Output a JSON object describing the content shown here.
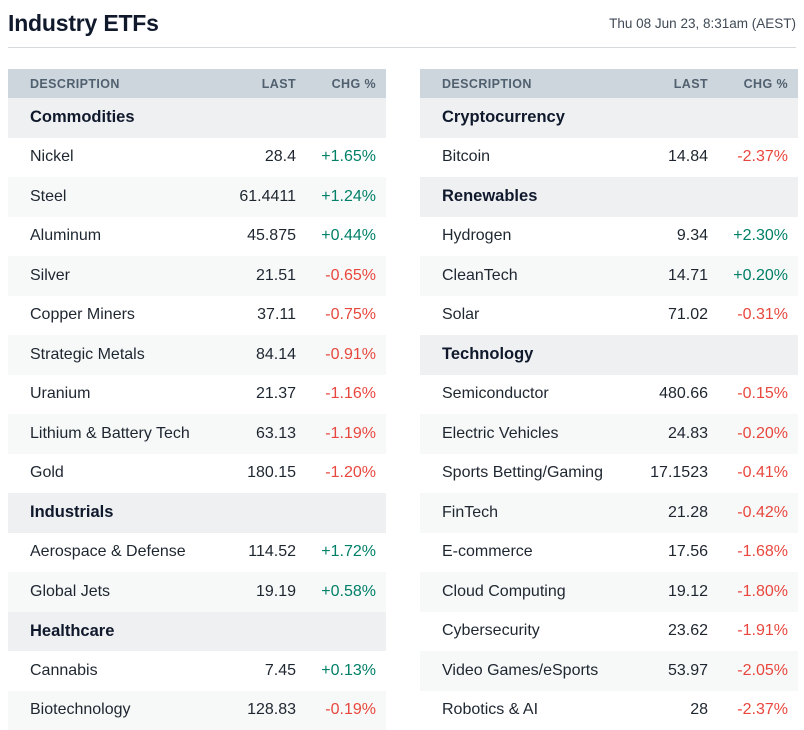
{
  "page": {
    "title": "Industry ETFs",
    "timestamp": "Thu 08 Jun 23, 8:31am (AEST)"
  },
  "colors": {
    "positive": "#008068",
    "negative": "#e8473d",
    "header_bg": "#cdd6dd",
    "header_fg": "#51606f",
    "section_bg": "#eef0f2",
    "stripe_bg": "#f7f8f8",
    "title_fg": "#10192c"
  },
  "columns": {
    "description": "DESCRIPTION",
    "last": "LAST",
    "chg": "CHG %"
  },
  "tables": [
    {
      "name": "left",
      "rows": [
        {
          "type": "section",
          "label": "Commodities"
        },
        {
          "type": "data",
          "description": "Nickel",
          "last": "28.4",
          "chg": "+1.65%",
          "direction": "up"
        },
        {
          "type": "data",
          "description": "Steel",
          "last": "61.4411",
          "chg": "+1.24%",
          "direction": "up"
        },
        {
          "type": "data",
          "description": "Aluminum",
          "last": "45.875",
          "chg": "+0.44%",
          "direction": "up"
        },
        {
          "type": "data",
          "description": "Silver",
          "last": "21.51",
          "chg": "-0.65%",
          "direction": "down"
        },
        {
          "type": "data",
          "description": "Copper Miners",
          "last": "37.11",
          "chg": "-0.75%",
          "direction": "down"
        },
        {
          "type": "data",
          "description": "Strategic Metals",
          "last": "84.14",
          "chg": "-0.91%",
          "direction": "down"
        },
        {
          "type": "data",
          "description": "Uranium",
          "last": "21.37",
          "chg": "-1.16%",
          "direction": "down"
        },
        {
          "type": "data",
          "description": "Lithium & Battery Tech",
          "last": "63.13",
          "chg": "-1.19%",
          "direction": "down"
        },
        {
          "type": "data",
          "description": "Gold",
          "last": "180.15",
          "chg": "-1.20%",
          "direction": "down"
        },
        {
          "type": "section",
          "label": "Industrials"
        },
        {
          "type": "data",
          "description": "Aerospace & Defense",
          "last": "114.52",
          "chg": "+1.72%",
          "direction": "up"
        },
        {
          "type": "data",
          "description": "Global Jets",
          "last": "19.19",
          "chg": "+0.58%",
          "direction": "up"
        },
        {
          "type": "section",
          "label": "Healthcare"
        },
        {
          "type": "data",
          "description": "Cannabis",
          "last": "7.45",
          "chg": "+0.13%",
          "direction": "up"
        },
        {
          "type": "data",
          "description": "Biotechnology",
          "last": "128.83",
          "chg": "-0.19%",
          "direction": "down"
        }
      ]
    },
    {
      "name": "right",
      "rows": [
        {
          "type": "section",
          "label": "Cryptocurrency"
        },
        {
          "type": "data",
          "description": "Bitcoin",
          "last": "14.84",
          "chg": "-2.37%",
          "direction": "down"
        },
        {
          "type": "section",
          "label": "Renewables"
        },
        {
          "type": "data",
          "description": "Hydrogen",
          "last": "9.34",
          "chg": "+2.30%",
          "direction": "up"
        },
        {
          "type": "data",
          "description": "CleanTech",
          "last": "14.71",
          "chg": "+0.20%",
          "direction": "up"
        },
        {
          "type": "data",
          "description": "Solar",
          "last": "71.02",
          "chg": "-0.31%",
          "direction": "down"
        },
        {
          "type": "section",
          "label": "Technology"
        },
        {
          "type": "data",
          "description": "Semiconductor",
          "last": "480.66",
          "chg": "-0.15%",
          "direction": "down"
        },
        {
          "type": "data",
          "description": "Electric Vehicles",
          "last": "24.83",
          "chg": "-0.20%",
          "direction": "down"
        },
        {
          "type": "data",
          "description": "Sports Betting/Gaming",
          "last": "17.1523",
          "chg": "-0.41%",
          "direction": "down"
        },
        {
          "type": "data",
          "description": "FinTech",
          "last": "21.28",
          "chg": "-0.42%",
          "direction": "down"
        },
        {
          "type": "data",
          "description": "E-commerce",
          "last": "17.56",
          "chg": "-1.68%",
          "direction": "down"
        },
        {
          "type": "data",
          "description": "Cloud Computing",
          "last": "19.12",
          "chg": "-1.80%",
          "direction": "down"
        },
        {
          "type": "data",
          "description": "Cybersecurity",
          "last": "23.62",
          "chg": "-1.91%",
          "direction": "down"
        },
        {
          "type": "data",
          "description": "Video Games/eSports",
          "last": "53.97",
          "chg": "-2.05%",
          "direction": "down"
        },
        {
          "type": "data",
          "description": "Robotics & AI",
          "last": "28",
          "chg": "-2.37%",
          "direction": "down"
        }
      ]
    }
  ]
}
